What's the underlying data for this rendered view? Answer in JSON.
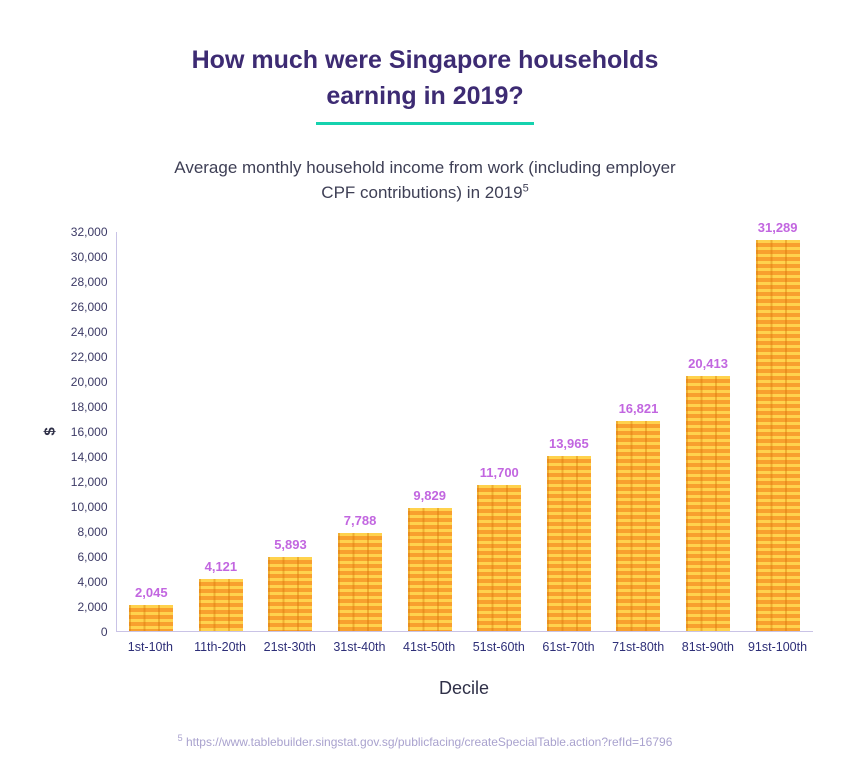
{
  "header": {
    "title_line1": "How much were Singapore households",
    "title_line2": "earning in 2019?",
    "subtitle_line1": "Average monthly household income from work (including employer",
    "subtitle_line2": "CPF contributions) in 2019",
    "subtitle_superscript": "5"
  },
  "chart_data": {
    "type": "bar",
    "title": "Average monthly household income from work (including employer CPF contributions) in 2019",
    "categories": [
      "1st-10th",
      "11th-20th",
      "21st-30th",
      "31st-40th",
      "41st-50th",
      "51st-60th",
      "61st-70th",
      "71st-80th",
      "81st-90th",
      "91st-100th"
    ],
    "values": [
      2045,
      4121,
      5893,
      7788,
      9829,
      11700,
      13965,
      16821,
      20413,
      31289
    ],
    "value_labels": [
      "2,045",
      "4,121",
      "5,893",
      "7,788",
      "9,829",
      "11,700",
      "13,965",
      "16,821",
      "20,413",
      "31,289"
    ],
    "xlabel": "Decile",
    "ylabel": "$",
    "ylim": [
      0,
      32000
    ],
    "ytick_step": 2000,
    "yticks": [
      "0",
      "2,000",
      "4,000",
      "6,000",
      "8,000",
      "10,000",
      "12,000",
      "14,000",
      "16,000",
      "18,000",
      "20,000",
      "22,000",
      "24,000",
      "26,000",
      "28,000",
      "30,000",
      "32,000"
    ],
    "grid": false,
    "legend": "none",
    "bar_color": "#F9A13B",
    "bar_stripe_color": "#FFD24D",
    "value_label_color": "#C266E0"
  },
  "colors": {
    "title": "#3D2B73",
    "title_underline": "#16D2AE",
    "axis_line": "#C9C3E6",
    "footnote": "#A9A2CE"
  },
  "footnote": {
    "superscript": "5",
    "text": " https://www.tablebuilder.singstat.gov.sg/publicfacing/createSpecialTable.action?refId=16796"
  }
}
